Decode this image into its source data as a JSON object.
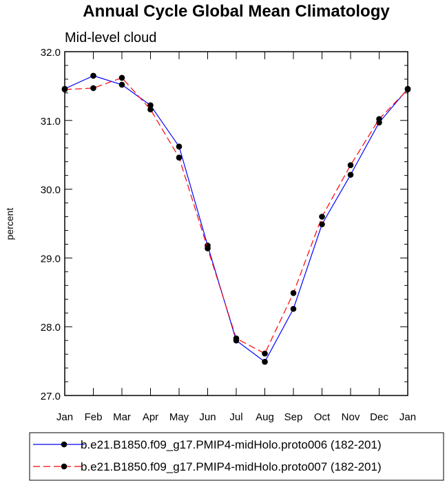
{
  "chart_data": {
    "type": "line",
    "title": "Annual Cycle Global Mean Climatology",
    "subtitle": "Mid-level cloud",
    "xlabel": "",
    "ylabel": "percent",
    "categories": [
      "Jan",
      "Feb",
      "Mar",
      "Apr",
      "May",
      "Jun",
      "Jul",
      "Aug",
      "Sep",
      "Oct",
      "Nov",
      "Dec",
      "Jan"
    ],
    "ylim": [
      27.0,
      32.0
    ],
    "yticks": [
      "27.0",
      "28.0",
      "29.0",
      "30.0",
      "31.0",
      "32.0"
    ],
    "grid": false,
    "legend_position": "bottom",
    "series": [
      {
        "name": "b.e21.B1850.f09_g17.PMIP4-midHolo.proto006 (182-201)",
        "color": "#0000ff",
        "dash": "solid",
        "values": [
          31.46,
          31.65,
          31.52,
          31.22,
          30.62,
          29.18,
          27.8,
          27.49,
          28.26,
          29.49,
          30.21,
          30.97,
          31.46
        ]
      },
      {
        "name": "b.e21.B1850.f09_g17.PMIP4-midHolo.proto007 (182-201)",
        "color": "#ff0000",
        "dash": "dashed",
        "values": [
          31.45,
          31.47,
          31.62,
          31.16,
          30.46,
          29.14,
          27.83,
          27.61,
          28.49,
          29.6,
          30.35,
          31.02,
          31.45
        ]
      }
    ]
  }
}
